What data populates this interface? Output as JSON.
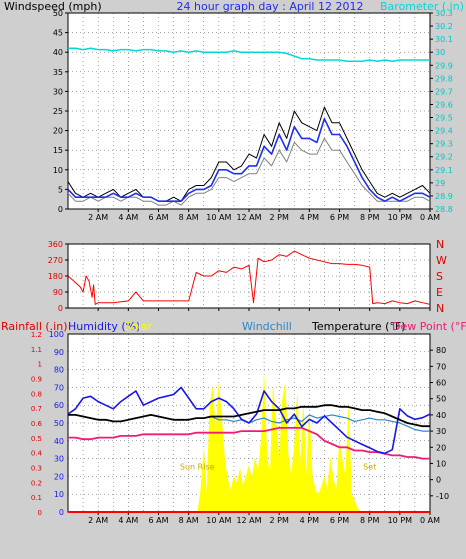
{
  "colors": {
    "background": "#cfcfcf",
    "plot_bg": "#ffffff",
    "wind": "#000000",
    "gust_gray": "#808080",
    "wind_avg": "#1f2ff0",
    "barometer": "#00d8d8",
    "wind_dir": "#ff0000",
    "rain_label": "#e00000",
    "humidity": "#1818e8",
    "solar": "#ffff00",
    "windchill": "#2d86c8",
    "temperature": "#000000",
    "dew_point": "#f01a78",
    "rain_line": "#ff0000",
    "sun_label": "#c8a800",
    "axis_cyan": "#00c8c8",
    "axis_red": "#e00000",
    "axis_blue": "#1818e8"
  },
  "chart_data": [
    {
      "type": "line",
      "title": "24 hour graph day : April 12 2012",
      "ylabel": "Windspeed (mph)",
      "y2label": "Barometer (.in)",
      "x_tick_labels": [
        "2 AM",
        "4 AM",
        "6 AM",
        "8 AM",
        "10 AM",
        "12 AM",
        "2 PM",
        "4 PM",
        "6 PM",
        "8 PM",
        "10 PM",
        "0 AM"
      ],
      "x": [
        0,
        0.5,
        1,
        1.5,
        2,
        2.5,
        3,
        3.5,
        4,
        4.5,
        5,
        5.5,
        6,
        6.5,
        7,
        7.5,
        8,
        8.5,
        9,
        9.5,
        10,
        10.5,
        11,
        11.5,
        12,
        12.5,
        13,
        13.5,
        14,
        14.5,
        15,
        15.5,
        16,
        16.5,
        17,
        17.5,
        18,
        18.5,
        19,
        19.5,
        20,
        20.5,
        21,
        21.5,
        22,
        22.5,
        23,
        23.5,
        24
      ],
      "xlim": [
        0,
        24
      ],
      "ylim": [
        0,
        50
      ],
      "y_ticks": [
        0,
        5,
        10,
        15,
        20,
        25,
        30,
        35,
        40,
        45,
        50
      ],
      "y2lim": [
        28.8,
        30.3
      ],
      "y2_ticks": [
        "28.8",
        "28.9",
        "29",
        "29.1",
        "29.2",
        "29.3",
        "29.4",
        "29.5",
        "29.6",
        "29.7",
        "29.8",
        "29.9",
        "30",
        "30.1",
        "30.2",
        "30.3"
      ],
      "grid": true,
      "series": [
        {
          "name": "Windspeed gust",
          "values": [
            7,
            4,
            3,
            4,
            3,
            4,
            5,
            3,
            4,
            5,
            3,
            3,
            2,
            2,
            3,
            2,
            5,
            6,
            6,
            8,
            12,
            12,
            10,
            11,
            14,
            13,
            19,
            16,
            22,
            18,
            25,
            22,
            21,
            20,
            26,
            22,
            22,
            18,
            14,
            10,
            7,
            4,
            3,
            4,
            3,
            4,
            5,
            6,
            4
          ]
        },
        {
          "name": "Windspeed",
          "values": [
            4,
            2,
            2,
            3,
            2,
            3,
            3,
            2,
            3,
            3,
            2,
            2,
            1,
            1,
            2,
            1,
            3,
            4,
            4,
            5,
            8,
            8,
            7,
            8,
            9,
            9,
            13,
            11,
            15,
            12,
            17,
            15,
            14,
            14,
            18,
            15,
            15,
            12,
            9,
            6,
            4,
            2,
            2,
            2,
            2,
            2,
            3,
            3,
            2
          ]
        },
        {
          "name": "Windspeed average",
          "values": [
            5,
            3,
            3,
            3,
            3,
            3,
            4,
            3,
            3,
            4,
            3,
            3,
            2,
            2,
            2,
            2,
            4,
            5,
            5,
            6,
            10,
            10,
            9,
            9,
            11,
            11,
            16,
            14,
            19,
            15,
            21,
            18,
            18,
            17,
            23,
            19,
            19,
            16,
            12,
            8,
            5,
            3,
            2,
            3,
            2,
            3,
            4,
            4,
            3
          ]
        },
        {
          "name": "Barometer",
          "values": [
            30.03,
            30.03,
            30.02,
            30.03,
            30.02,
            30.02,
            30.01,
            30.02,
            30.02,
            30.01,
            30.02,
            30.02,
            30.01,
            30.01,
            30.0,
            30.01,
            30.0,
            30.01,
            30.0,
            30.0,
            30.0,
            30.0,
            30.01,
            30.0,
            30.0,
            30.0,
            30.0,
            30.0,
            30.0,
            29.99,
            29.97,
            29.95,
            29.95,
            29.94,
            29.94,
            29.94,
            29.94,
            29.93,
            29.93,
            29.93,
            29.94,
            29.93,
            29.94,
            29.93,
            29.94,
            29.94,
            29.94,
            29.94,
            29.94
          ]
        }
      ]
    },
    {
      "type": "line",
      "x_tick_labels": [
        "2 AM",
        "4 AM",
        "6 AM",
        "8 AM",
        "10 AM",
        "12 AM",
        "2 PM",
        "4 PM",
        "6 PM",
        "8 PM",
        "10 PM",
        "0 AM"
      ],
      "xlim": [
        0,
        24
      ],
      "ylim": [
        0,
        360
      ],
      "y_ticks": [
        0,
        90,
        180,
        270,
        360
      ],
      "y2_ticks": [
        "N",
        "E",
        "S",
        "W",
        "N"
      ],
      "grid": true,
      "series": [
        {
          "name": "Wind direction",
          "x": [
            0,
            0.4,
            0.8,
            1.0,
            1.2,
            1.4,
            1.6,
            1.7,
            1.8,
            2.0,
            2.5,
            3.0,
            3.5,
            4.0,
            4.5,
            5.0,
            5.5,
            6.0,
            6.5,
            7.0,
            7.5,
            8.0,
            8.5,
            9.0,
            9.5,
            10.0,
            10.5,
            11.0,
            11.5,
            12.0,
            12.3,
            12.6,
            13.0,
            13.5,
            14.0,
            14.5,
            15.0,
            15.5,
            16.0,
            16.5,
            17.0,
            17.5,
            18.0,
            18.5,
            19.0,
            19.5,
            20.0,
            20.2,
            20.5,
            21.0,
            21.5,
            22.0,
            22.5,
            23.0,
            23.5,
            24.0
          ],
          "values": [
            180,
            150,
            120,
            90,
            180,
            150,
            60,
            130,
            20,
            30,
            30,
            30,
            35,
            40,
            90,
            40,
            40,
            40,
            40,
            40,
            40,
            40,
            200,
            180,
            180,
            210,
            200,
            230,
            220,
            240,
            30,
            280,
            260,
            270,
            300,
            290,
            320,
            300,
            280,
            270,
            260,
            250,
            250,
            245,
            245,
            240,
            230,
            25,
            30,
            25,
            40,
            30,
            25,
            40,
            30,
            20
          ]
        }
      ]
    },
    {
      "type": "line",
      "ylabel": "Rainfall (.in)",
      "legend": [
        "Humidity (%)",
        "Solar",
        "Windchill",
        "Temperature (°F)",
        "Dew Point (°F)"
      ],
      "x_tick_labels": [
        "2 AM",
        "4 AM",
        "6 AM",
        "8 AM",
        "10 AM",
        "12 AM",
        "2 PM",
        "4 PM",
        "6 PM",
        "8 PM",
        "10 PM",
        "0 AM"
      ],
      "xlim": [
        0,
        24
      ],
      "y_rain_lim": [
        0,
        1.2
      ],
      "y_rain_ticks": [
        "0",
        "0.1",
        "0.2",
        "0.3",
        "0.4",
        "0.5",
        "0.6",
        "0.7",
        "0.8",
        "0.9",
        "1",
        "1.1",
        "1.2"
      ],
      "y_hum_lim": [
        0,
        100
      ],
      "y_hum_ticks": [
        0,
        10,
        20,
        30,
        40,
        50,
        60,
        70,
        80,
        90,
        100
      ],
      "y_temp_lim": [
        -20,
        90
      ],
      "y_temp_ticks": [
        -10,
        0,
        10,
        20,
        30,
        40,
        50,
        60,
        70,
        80
      ],
      "annotations": [
        "Sun Rise",
        "Set"
      ],
      "grid": true,
      "series": [
        {
          "name": "Temperature (°F)",
          "values": [
            40,
            40,
            39,
            38,
            37,
            37,
            36,
            36,
            37,
            38,
            39,
            40,
            39,
            38,
            37,
            37,
            37,
            38,
            38,
            39,
            39,
            39,
            39,
            40,
            41,
            42,
            43,
            43,
            43,
            44,
            44,
            45,
            45,
            45,
            46,
            46,
            45,
            45,
            44,
            43,
            43,
            42,
            41,
            39,
            37,
            35,
            34,
            33,
            33
          ]
        },
        {
          "name": "Humidity (%)",
          "values": [
            55,
            58,
            64,
            65,
            62,
            60,
            58,
            62,
            65,
            68,
            60,
            62,
            64,
            65,
            66,
            70,
            64,
            58,
            58,
            62,
            64,
            62,
            58,
            52,
            50,
            55,
            68,
            62,
            58,
            50,
            55,
            48,
            52,
            50,
            54,
            50,
            46,
            42,
            40,
            38,
            36,
            34,
            33,
            35,
            58,
            54,
            52,
            53,
            55
          ]
        },
        {
          "name": "Windchill",
          "values": [
            40,
            40,
            39,
            38,
            37,
            37,
            36,
            36,
            37,
            38,
            39,
            40,
            39,
            38,
            37,
            37,
            37,
            38,
            38,
            39,
            37,
            37,
            36,
            37,
            35,
            37,
            38,
            36,
            35,
            37,
            38,
            36,
            40,
            38,
            39,
            40,
            39,
            38,
            36,
            37,
            38,
            37,
            37,
            36,
            35,
            33,
            31,
            30,
            30
          ]
        },
        {
          "name": "Dew Point (°F)",
          "values": [
            26,
            26,
            25,
            25,
            26,
            26,
            26,
            27,
            27,
            27,
            28,
            28,
            28,
            28,
            28,
            28,
            28,
            29,
            29,
            29,
            29,
            29,
            29,
            30,
            30,
            30,
            30,
            31,
            32,
            32,
            32,
            32,
            30,
            28,
            24,
            22,
            20,
            20,
            18,
            18,
            17,
            17,
            16,
            15,
            15,
            14,
            14,
            13,
            13
          ]
        },
        {
          "name": "Solar",
          "values": [
            0,
            0,
            0,
            0,
            0,
            0,
            0,
            0,
            0,
            0,
            0,
            0,
            0,
            0,
            0,
            0,
            0,
            0,
            0,
            0,
            0,
            0,
            0,
            0,
            0,
            0,
            0,
            0,
            0,
            0,
            0,
            0,
            0,
            0,
            0,
            0,
            0,
            0,
            0,
            0,
            0,
            0,
            0,
            0,
            0,
            0,
            0,
            0,
            0
          ]
        },
        {
          "name": "Rainfall",
          "values": [
            0,
            0,
            0,
            0,
            0,
            0,
            0,
            0,
            0,
            0,
            0,
            0,
            0,
            0,
            0,
            0,
            0,
            0,
            0,
            0,
            0,
            0,
            0,
            0,
            0,
            0,
            0,
            0,
            0,
            0,
            0,
            0,
            0,
            0,
            0,
            0,
            0,
            0,
            0,
            0,
            0,
            0,
            0,
            0,
            0,
            0,
            0,
            0,
            0
          ]
        }
      ],
      "solar": {
        "x": [
          8.6,
          8.8,
          9.0,
          9.2,
          9.4,
          9.6,
          9.8,
          10.0,
          10.2,
          10.4,
          10.6,
          10.8,
          11.0,
          11.2,
          11.4,
          11.6,
          11.8,
          12.0,
          12.2,
          12.4,
          12.6,
          12.8,
          13.0,
          13.2,
          13.4,
          13.6,
          13.8,
          14.0,
          14.2,
          14.4,
          14.6,
          14.8,
          15.0,
          15.2,
          15.4,
          15.6,
          15.8,
          16.0,
          16.2,
          16.4,
          16.6,
          16.8,
          17.0,
          17.2,
          17.4,
          17.6,
          17.8,
          18.0,
          18.2,
          18.4,
          18.6,
          18.8,
          19.0,
          19.2,
          19.4
        ],
        "values": [
          0,
          12,
          35,
          8,
          60,
          70,
          42,
          72,
          52,
          28,
          18,
          12,
          20,
          16,
          24,
          14,
          20,
          26,
          18,
          30,
          22,
          40,
          76,
          30,
          20,
          70,
          50,
          28,
          62,
          72,
          32,
          20,
          36,
          66,
          24,
          60,
          18,
          56,
          20,
          12,
          10,
          14,
          20,
          12,
          30,
          18,
          12,
          40,
          28,
          20,
          58,
          10,
          6,
          2,
          0
        ]
      }
    }
  ]
}
